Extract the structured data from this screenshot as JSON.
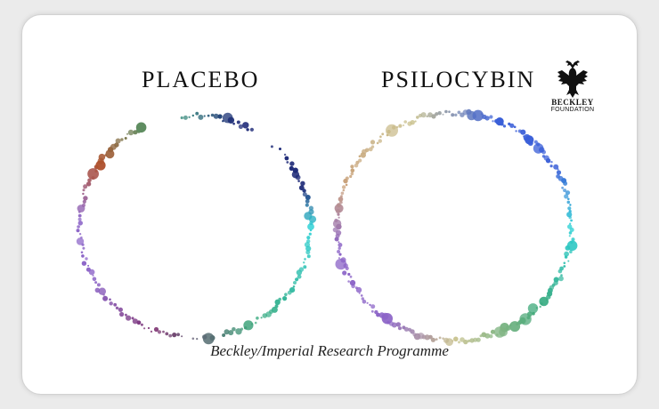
{
  "headings": {
    "placebo": "PLACEBO",
    "psilocybin": "PSILOCYBIN"
  },
  "logo": {
    "name": "BECKLEY",
    "subtitle": "FOUNDATION",
    "icon": "double-headed-eagle-icon"
  },
  "caption": "Beckley/Imperial Research Programme",
  "colors": {
    "background": "#ffffff",
    "ring_palette": [
      "#1e2a78",
      "#2bd1d6",
      "#3aa87a",
      "#7a2e6e",
      "#8b63c7",
      "#b0502a",
      "#c8c08a",
      "#3a5fd8"
    ]
  }
}
